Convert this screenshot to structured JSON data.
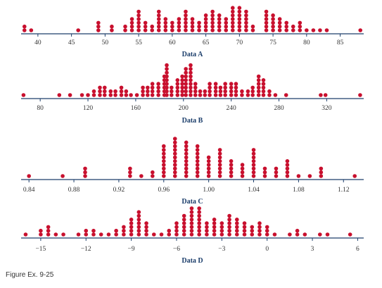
{
  "caption": "Figure Ex. 9-25",
  "chart_data": [
    {
      "type": "scatter",
      "subtype": "dot plot",
      "xlabel": "Data A",
      "xlim": [
        37.5,
        88.5
      ],
      "ticks": [
        40,
        45,
        50,
        55,
        60,
        65,
        70,
        75,
        80,
        85
      ],
      "tick_labels": [
        "40",
        "45",
        "50",
        "55",
        "60",
        "65",
        "70",
        "75",
        "80",
        "85"
      ],
      "points": [
        [
          38,
          2
        ],
        [
          39,
          1
        ],
        [
          46,
          1
        ],
        [
          49,
          3
        ],
        [
          51,
          2
        ],
        [
          53,
          2
        ],
        [
          54,
          4
        ],
        [
          55,
          6
        ],
        [
          56,
          3
        ],
        [
          57,
          2
        ],
        [
          58,
          6
        ],
        [
          59,
          4
        ],
        [
          60,
          3
        ],
        [
          61,
          4
        ],
        [
          62,
          6
        ],
        [
          63,
          4
        ],
        [
          64,
          3
        ],
        [
          65,
          5
        ],
        [
          66,
          6
        ],
        [
          67,
          5
        ],
        [
          68,
          4
        ],
        [
          69,
          7
        ],
        [
          70,
          7
        ],
        [
          71,
          6
        ],
        [
          72,
          2
        ],
        [
          74,
          6
        ],
        [
          75,
          5
        ],
        [
          76,
          4
        ],
        [
          77,
          3
        ],
        [
          78,
          2
        ],
        [
          79,
          3
        ],
        [
          80,
          1
        ],
        [
          81,
          1
        ],
        [
          82,
          1
        ],
        [
          83,
          1
        ],
        [
          88,
          1
        ]
      ]
    },
    {
      "type": "scatter",
      "subtype": "dot plot",
      "xlabel": "Data B",
      "xlim": [
        64,
        351
      ],
      "ticks": [
        80,
        120,
        160,
        200,
        240,
        280,
        320
      ],
      "tick_labels": [
        "80",
        "120",
        "160",
        "200",
        "240",
        "280",
        "320"
      ],
      "points": [
        [
          66,
          1
        ],
        [
          96,
          1
        ],
        [
          105,
          1
        ],
        [
          115,
          1
        ],
        [
          120,
          1
        ],
        [
          125,
          2
        ],
        [
          130,
          3
        ],
        [
          134,
          3
        ],
        [
          139,
          2
        ],
        [
          143,
          2
        ],
        [
          148,
          3
        ],
        [
          152,
          2
        ],
        [
          156,
          1
        ],
        [
          161,
          1
        ],
        [
          166,
          3
        ],
        [
          170,
          3
        ],
        [
          174,
          4
        ],
        [
          179,
          4
        ],
        [
          184,
          6
        ],
        [
          186,
          9
        ],
        [
          190,
          3
        ],
        [
          195,
          5
        ],
        [
          199,
          6
        ],
        [
          202,
          8
        ],
        [
          206,
          9
        ],
        [
          210,
          4
        ],
        [
          214,
          2
        ],
        [
          218,
          2
        ],
        [
          222,
          4
        ],
        [
          227,
          4
        ],
        [
          231,
          3
        ],
        [
          235,
          4
        ],
        [
          240,
          4
        ],
        [
          244,
          4
        ],
        [
          249,
          2
        ],
        [
          254,
          2
        ],
        [
          258,
          3
        ],
        [
          263,
          6
        ],
        [
          267,
          5
        ],
        [
          272,
          2
        ],
        [
          277,
          1
        ],
        [
          286,
          1
        ],
        [
          315,
          1
        ],
        [
          319,
          1
        ],
        [
          348,
          1
        ]
      ]
    },
    {
      "type": "scatter",
      "subtype": "dot plot",
      "xlabel": "Data C",
      "xlim": [
        0.833,
        1.138
      ],
      "ticks": [
        0.84,
        0.88,
        0.92,
        0.96,
        1.0,
        1.04,
        1.08,
        1.12
      ],
      "tick_labels": [
        "0.84",
        "0.88",
        "0.92",
        "0.96",
        "1.00",
        "1.04",
        "1.08",
        "1.12"
      ],
      "points": [
        [
          0.84,
          1
        ],
        [
          0.87,
          1
        ],
        [
          0.89,
          3
        ],
        [
          0.93,
          3
        ],
        [
          0.94,
          1
        ],
        [
          0.95,
          2
        ],
        [
          0.96,
          9
        ],
        [
          0.97,
          11
        ],
        [
          0.98,
          10
        ],
        [
          0.99,
          9
        ],
        [
          1.0,
          6
        ],
        [
          1.01,
          8
        ],
        [
          1.02,
          5
        ],
        [
          1.03,
          4
        ],
        [
          1.04,
          8
        ],
        [
          1.05,
          3
        ],
        [
          1.06,
          3
        ],
        [
          1.07,
          5
        ],
        [
          1.08,
          1
        ],
        [
          1.09,
          1
        ],
        [
          1.1,
          3
        ],
        [
          1.13,
          1
        ]
      ]
    },
    {
      "type": "scatter",
      "subtype": "dot plot",
      "xlabel": "Data D",
      "xlim": [
        -16.3,
        6.4
      ],
      "ticks": [
        -15,
        -12,
        -9,
        -6,
        -3,
        0,
        3,
        6
      ],
      "tick_labels": [
        "−15",
        "−12",
        "−9",
        "−6",
        "−3",
        "0",
        "3",
        "6"
      ],
      "points": [
        [
          -16,
          1
        ],
        [
          -15,
          2
        ],
        [
          -14.5,
          3
        ],
        [
          -14,
          1
        ],
        [
          -13.5,
          1
        ],
        [
          -12.5,
          1
        ],
        [
          -12,
          2
        ],
        [
          -11.5,
          2
        ],
        [
          -11,
          1
        ],
        [
          -10.5,
          1
        ],
        [
          -10,
          2
        ],
        [
          -9.5,
          3
        ],
        [
          -9,
          5
        ],
        [
          -8.5,
          7
        ],
        [
          -8,
          4
        ],
        [
          -7.5,
          1
        ],
        [
          -7,
          1
        ],
        [
          -6.5,
          2
        ],
        [
          -6,
          4
        ],
        [
          -5.5,
          6
        ],
        [
          -5,
          8
        ],
        [
          -4.5,
          8
        ],
        [
          -4,
          4
        ],
        [
          -3.5,
          5
        ],
        [
          -3,
          4
        ],
        [
          -2.5,
          6
        ],
        [
          -2,
          5
        ],
        [
          -1.5,
          4
        ],
        [
          -1,
          3
        ],
        [
          -0.5,
          4
        ],
        [
          0,
          3
        ],
        [
          0.5,
          1
        ],
        [
          1.5,
          1
        ],
        [
          2,
          2
        ],
        [
          2.5,
          1
        ],
        [
          3.5,
          1
        ],
        [
          4,
          1
        ],
        [
          5.5,
          1
        ]
      ]
    }
  ]
}
